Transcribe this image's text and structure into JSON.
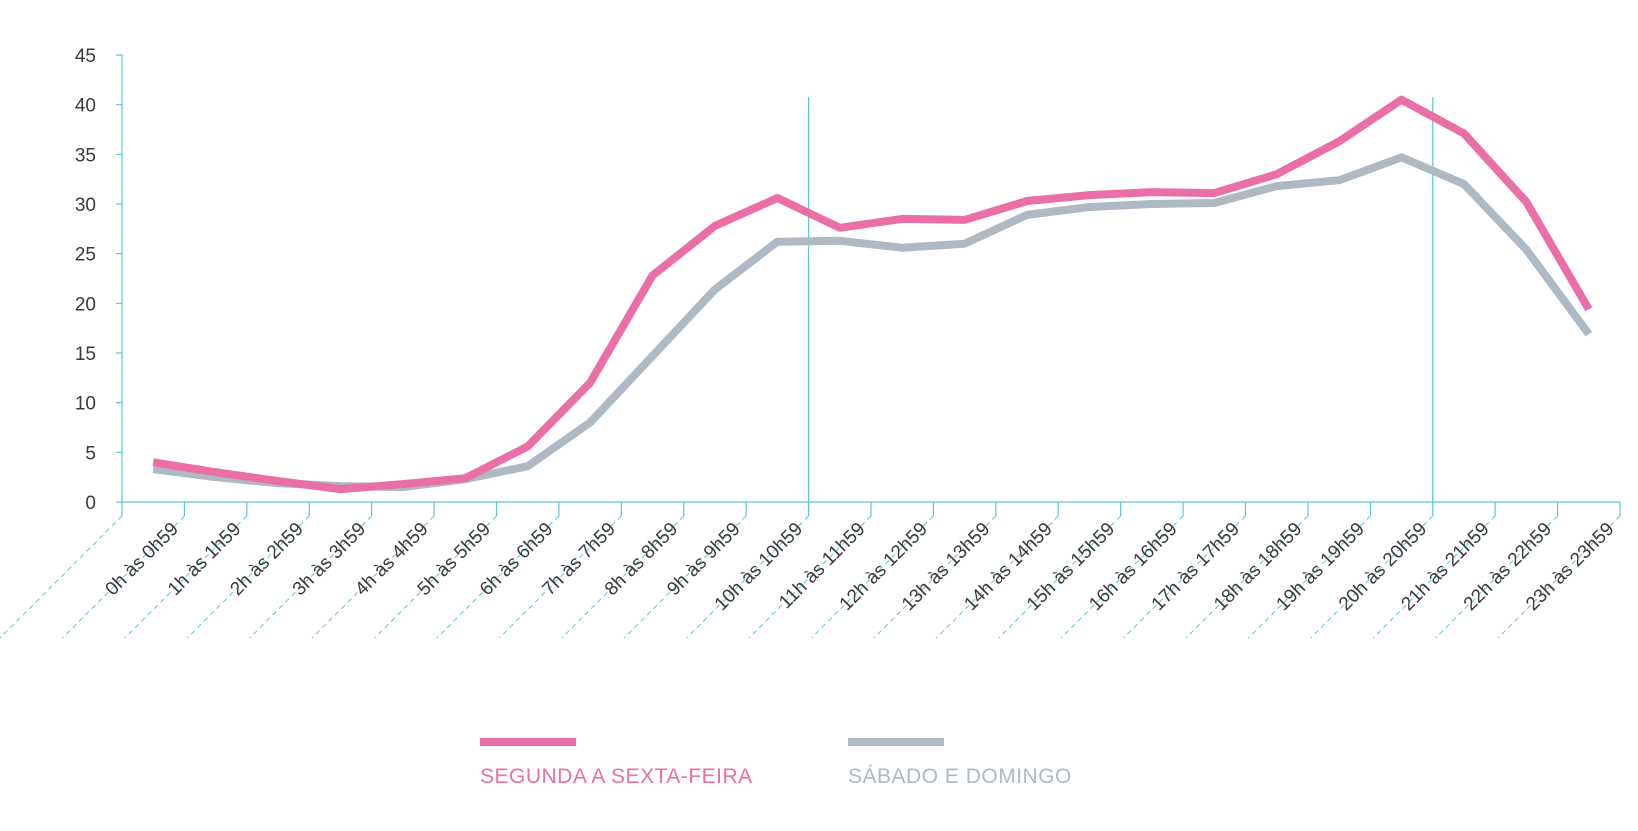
{
  "chart_data": {
    "type": "line",
    "categories": [
      "0h às 0h59",
      "1h às 1h59",
      "2h às 2h59",
      "3h às 3h59",
      "4h às 4h59",
      "5h às 5h59",
      "6h às 6h59",
      "7h às 7h59",
      "8h às 8h59",
      "9h às 9h59",
      "10h às 10h59",
      "11h às 11h59",
      "12h às 12h59",
      "13h às 13h59",
      "14h às 14h59",
      "15h às 15h59",
      "16h às 16h59",
      "17h às 17h59",
      "18h às 18h59",
      "19h às 19h59",
      "20h às 20h59",
      "21h às 21h59",
      "22h às 22h59",
      "23h às 23h59"
    ],
    "series": [
      {
        "name": "SEGUNDA A SEXTA-FEIRA",
        "color": "#e96fa6",
        "values": [
          4.0,
          3.0,
          2.1,
          1.3,
          1.8,
          2.4,
          5.6,
          12.0,
          22.8,
          27.8,
          30.6,
          27.6,
          28.5,
          28.4,
          30.3,
          30.9,
          31.2,
          31.1,
          33.0,
          36.3,
          40.5,
          37.1,
          30.2,
          19.4
        ]
      },
      {
        "name": "SÁBADO E DOMINGO",
        "color": "#aeb9c4",
        "values": [
          3.3,
          2.5,
          1.9,
          1.6,
          1.5,
          2.3,
          3.6,
          8.0,
          14.7,
          21.4,
          26.2,
          26.3,
          25.6,
          26.0,
          28.9,
          29.7,
          30.0,
          30.1,
          31.8,
          32.4,
          34.7,
          32.0,
          25.4,
          16.9
        ]
      }
    ],
    "yticks": [
      "0",
      "5",
      "10",
      "15",
      "20",
      "25",
      "30",
      "35",
      "40",
      "45"
    ],
    "ylim": [
      0,
      45
    ],
    "highlight_categories": [
      "10h às 10h59",
      "20h às 20h59"
    ],
    "axis_color": "#5cc5da",
    "legend_position": "bottom-center"
  }
}
